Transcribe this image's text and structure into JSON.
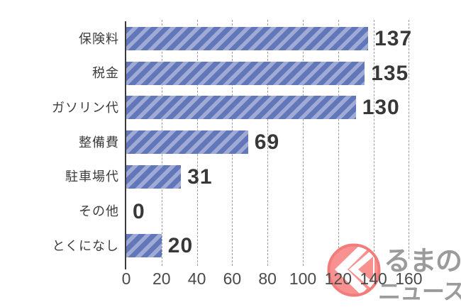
{
  "chart_data": {
    "type": "bar",
    "orientation": "horizontal",
    "title": "",
    "categories": [
      "保険料",
      "税金",
      "ガソリン代",
      "整備費",
      "駐車場代",
      "その他",
      "とくになし"
    ],
    "values": [
      137,
      135,
      130,
      69,
      31,
      0,
      20
    ],
    "xticks": [
      0,
      20,
      40,
      60,
      80,
      100,
      120,
      140,
      160
    ],
    "xlim": [
      0,
      160
    ],
    "grid": "vertical-dashed",
    "legend": "none",
    "bar_stripe_dark": "#6277b9",
    "bar_stripe_light": "#9fabd5",
    "value_label_color": "#383838",
    "category_label_color": "#3c3c3c",
    "tick_label_color": "#4a4a4a",
    "axis_line_color": "#3a3a3a",
    "gridline_color": "#9b9b9b"
  },
  "watermark": {
    "brand": "くるまのニュース",
    "mark_char": "く",
    "text_line1": "るまの",
    "text_line2": "ニュース",
    "circle_fill": "#f8918f",
    "circle_ring": "#f27c7a",
    "arrow_color": "#ffffff",
    "text_color": "#9b9b9b"
  }
}
